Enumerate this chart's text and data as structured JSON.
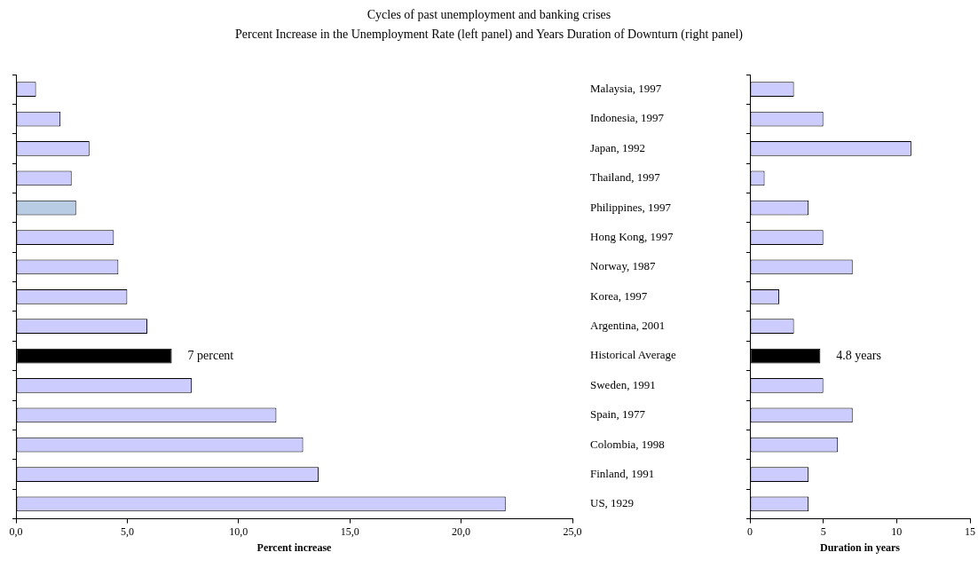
{
  "chart_data": [
    {
      "type": "bar",
      "orientation": "horizontal",
      "title": "Cycles of past unemployment and banking crises",
      "subtitle": "Percent Increase in the Unemployment Rate (left panel) and Years Duration of Downturn (right panel)",
      "xlabel": "Percent increase",
      "categories": [
        null,
        null,
        null,
        null,
        null,
        null,
        null,
        null,
        null,
        null,
        null,
        null,
        null,
        null,
        null
      ],
      "values": [
        0.9,
        2.0,
        3.3,
        2.5,
        2.7,
        4.4,
        4.6,
        5.0,
        5.9,
        7,
        7.9,
        11.7,
        12.9,
        13.6,
        22.0
      ],
      "colors": [
        "#ccccff",
        "#ccccff",
        "#ccccff",
        "#ccccff",
        "#b8cce4",
        "#ccccff",
        "#ccccff",
        "#ccccff",
        "#ccccff",
        "#000000",
        "#ccccff",
        "#ccccff",
        "#ccccff",
        "#ccccff",
        "#ccccff"
      ],
      "value_labels": [
        null,
        null,
        null,
        null,
        null,
        null,
        null,
        null,
        null,
        "7 percent",
        null,
        null,
        null,
        null,
        null
      ],
      "xlim": [
        0,
        25
      ],
      "xticks": [
        {
          "value": 0,
          "label": "0,0"
        },
        {
          "value": 5,
          "label": "5,0"
        },
        {
          "value": 10,
          "label": "10,0"
        },
        {
          "value": 15,
          "label": "15,0"
        },
        {
          "value": 20,
          "label": "20,0"
        },
        {
          "value": 25,
          "label": "25,0"
        }
      ],
      "tick_labels": "x"
    },
    {
      "type": "bar",
      "orientation": "horizontal",
      "xlabel": "Duration in years",
      "categories": [
        "Malaysia, 1997",
        "Indonesia, 1997",
        "Japan, 1992",
        "Thailand, 1997",
        "Philippines, 1997",
        "Hong Kong, 1997",
        "Norway, 1987",
        "Korea, 1997",
        "Argentina, 2001",
        "Historical Average",
        "Sweden, 1991",
        "Spain, 1977",
        "Colombia, 1998",
        "Finland, 1991",
        "US, 1929"
      ],
      "values": [
        3,
        5,
        11,
        1,
        4,
        5,
        7,
        2,
        3,
        4.8,
        5,
        7,
        6,
        4,
        4
      ],
      "colors": [
        "#ccccff",
        "#ccccff",
        "#ccccff",
        "#ccccff",
        "#ccccff",
        "#ccccff",
        "#ccccff",
        "#ccccff",
        "#ccccff",
        "#000000",
        "#ccccff",
        "#ccccff",
        "#ccccff",
        "#ccccff",
        "#ccccff"
      ],
      "value_labels": [
        null,
        null,
        null,
        null,
        null,
        null,
        null,
        null,
        null,
        "4.8 years",
        null,
        null,
        null,
        null,
        null
      ],
      "xlim": [
        0,
        15
      ],
      "xticks": [
        0,
        5,
        10,
        15
      ]
    }
  ]
}
